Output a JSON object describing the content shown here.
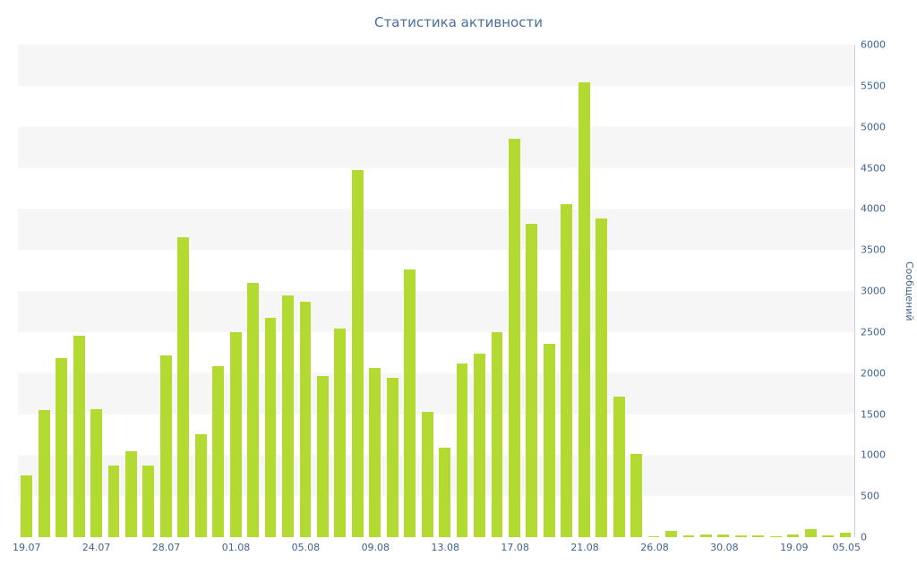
{
  "title": "Статистика активности",
  "chart_data": {
    "type": "bar",
    "title": "Статистика активности",
    "xlabel": "",
    "ylabel": "Сообщений",
    "ylim": [
      0,
      6000
    ],
    "ytick_step": 500,
    "legend": "none",
    "grid": "horizontal-bands",
    "bar_color": "#b3da30",
    "band_color": "#f6f6f6",
    "axis_text_color": "#3e6394",
    "title_color": "#4a6e9e",
    "x_tick_labels": [
      "19.07",
      "24.07",
      "28.07",
      "01.08",
      "05.08",
      "09.08",
      "13.08",
      "17.08",
      "21.08",
      "26.08",
      "30.08",
      "19.09",
      "05.05"
    ],
    "bars": [
      {
        "value": 750,
        "tick": "19.07"
      },
      {
        "value": 1550
      },
      {
        "value": 2180
      },
      {
        "value": 2450
      },
      {
        "value": 1560,
        "tick": "24.07"
      },
      {
        "value": 870
      },
      {
        "value": 1050
      },
      {
        "value": 870
      },
      {
        "value": 2220,
        "tick": "28.07"
      },
      {
        "value": 3650
      },
      {
        "value": 1260
      },
      {
        "value": 2080
      },
      {
        "value": 2500,
        "tick": "01.08"
      },
      {
        "value": 3100
      },
      {
        "value": 2670
      },
      {
        "value": 2950
      },
      {
        "value": 2870,
        "tick": "05.08"
      },
      {
        "value": 1960
      },
      {
        "value": 2540
      },
      {
        "value": 4470
      },
      {
        "value": 2060,
        "tick": "09.08"
      },
      {
        "value": 1940
      },
      {
        "value": 3260
      },
      {
        "value": 1530
      },
      {
        "value": 1090,
        "tick": "13.08"
      },
      {
        "value": 2120
      },
      {
        "value": 2240
      },
      {
        "value": 2500
      },
      {
        "value": 4850,
        "tick": "17.08"
      },
      {
        "value": 3820
      },
      {
        "value": 2360
      },
      {
        "value": 4060
      },
      {
        "value": 5540,
        "tick": "21.08"
      },
      {
        "value": 3880
      },
      {
        "value": 1710
      },
      {
        "value": 1020
      },
      {
        "value": 15,
        "tick": "26.08"
      },
      {
        "value": 80
      },
      {
        "value": 25
      },
      {
        "value": 35
      },
      {
        "value": 30,
        "tick": "30.08"
      },
      {
        "value": 20
      },
      {
        "value": 25
      },
      {
        "value": 15
      },
      {
        "value": 30,
        "tick": "19.09"
      },
      {
        "value": 100
      },
      {
        "value": 20
      },
      {
        "value": 50,
        "tick": "05.05"
      }
    ]
  }
}
